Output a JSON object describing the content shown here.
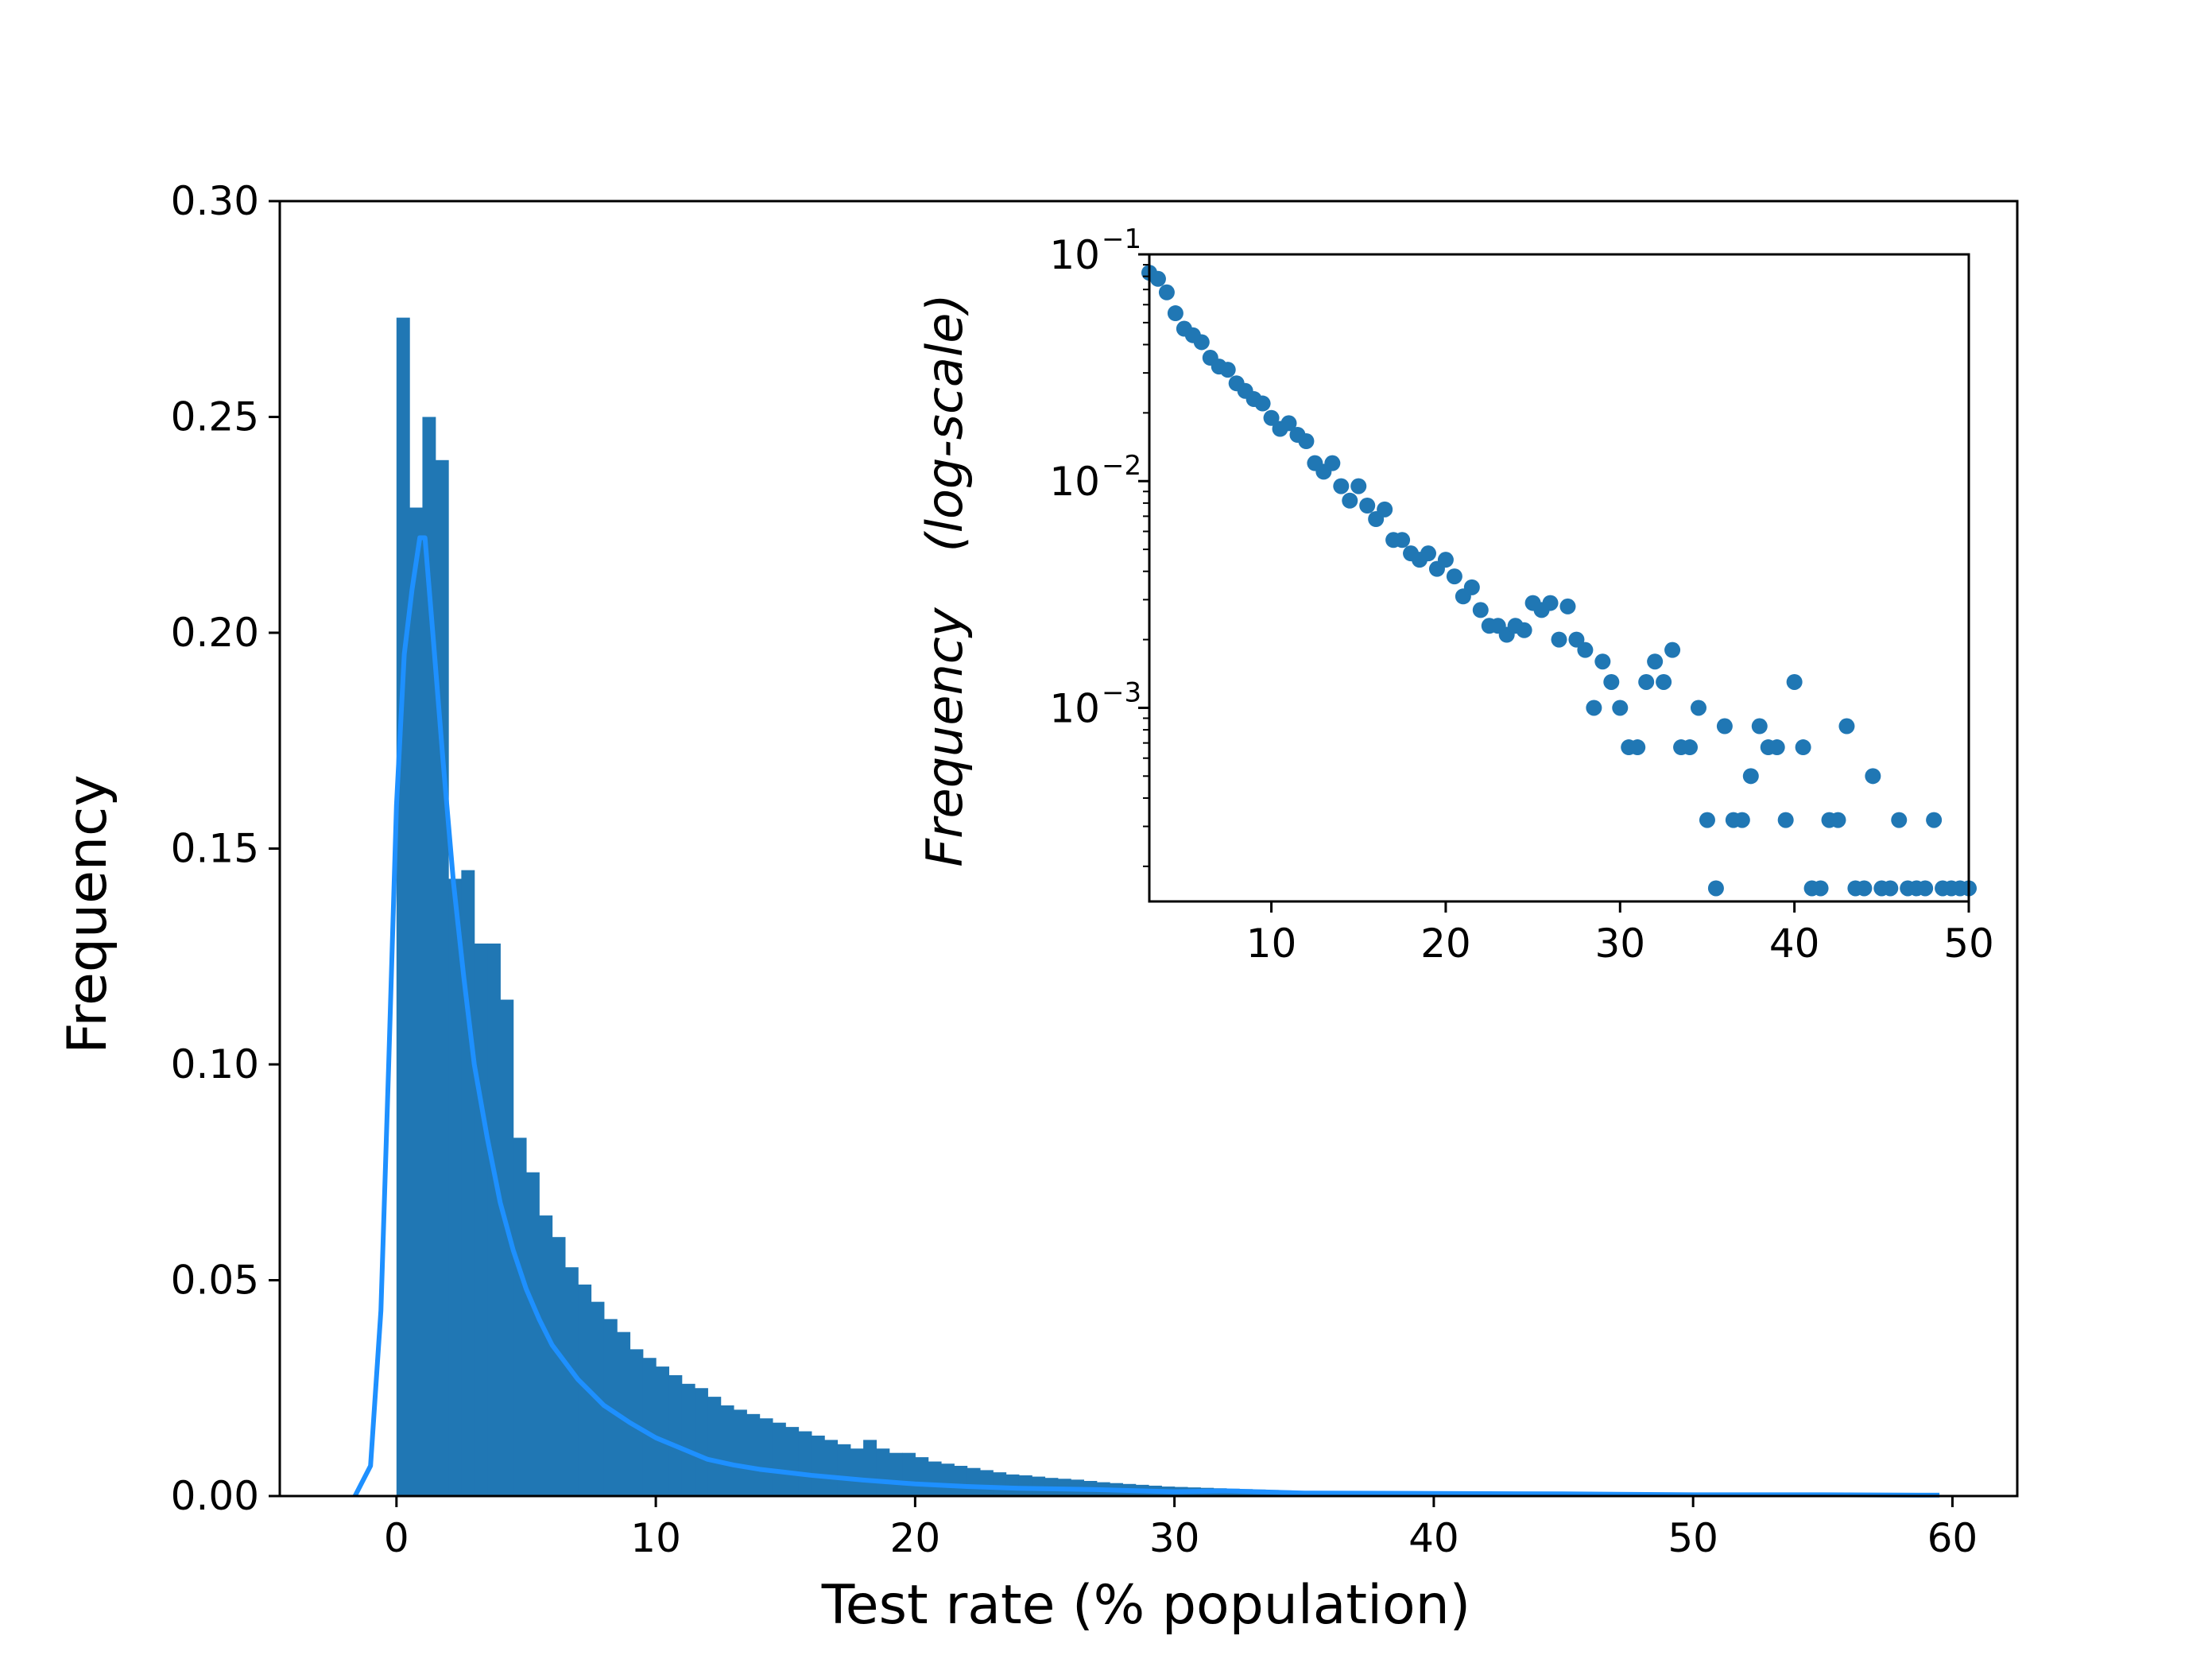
{
  "chart_data": [
    {
      "type": "histogram",
      "id": "main",
      "title": "",
      "xlabel": "Test rate (% population)",
      "ylabel": "Frequency",
      "xlim": [
        -4.5,
        62.5
      ],
      "ylim": [
        0,
        0.3
      ],
      "xticks": [
        0,
        10,
        20,
        30,
        40,
        50,
        60
      ],
      "xtick_labels": [
        "0",
        "10",
        "20",
        "30",
        "40",
        "50",
        "60"
      ],
      "yticks": [
        0,
        0.05,
        0.1,
        0.15,
        0.2,
        0.25,
        0.3
      ],
      "ytick_labels": [
        "0.00",
        "0.05",
        "0.10",
        "0.15",
        "0.20",
        "0.25",
        "0.30"
      ],
      "bar_color": "#2077b4",
      "bin_width": 0.5,
      "bin_start": 0,
      "bar_values": [
        0.273,
        0.229,
        0.25,
        0.24,
        0.143,
        0.145,
        0.128,
        0.128,
        0.115,
        0.083,
        0.075,
        0.065,
        0.06,
        0.053,
        0.049,
        0.045,
        0.041,
        0.038,
        0.034,
        0.032,
        0.03,
        0.028,
        0.026,
        0.025,
        0.023,
        0.021,
        0.02,
        0.019,
        0.018,
        0.017,
        0.016,
        0.015,
        0.014,
        0.013,
        0.012,
        0.011,
        0.013,
        0.011,
        0.01,
        0.01,
        0.009,
        0.008,
        0.0075,
        0.007,
        0.0065,
        0.006,
        0.0055,
        0.005,
        0.0048,
        0.0045,
        0.0042,
        0.004,
        0.0038,
        0.0035,
        0.0032,
        0.003,
        0.0028,
        0.0026,
        0.0024,
        0.0022,
        0.0021,
        0.002,
        0.0019,
        0.0018,
        0.0017,
        0.0016,
        0.0015,
        0.0014,
        0.0013,
        0.0012,
        0.0011,
        0.001,
        0.001,
        0.0009,
        0.0009,
        0.0008,
        0.0008,
        0.0007,
        0.0007,
        0.0006,
        0.0006,
        0.0005,
        0.0005,
        0.0005,
        0.0004,
        0.0004,
        0.0004,
        0.0003,
        0.0003,
        0.0003,
        0.0003,
        0.0002,
        0.0002,
        0.0002,
        0.0002,
        0.0002,
        0.0001,
        0.0001,
        0.0001,
        0.0001
      ],
      "kde_color": "#1e90ff",
      "kde_x": [
        -1.6,
        -1.0,
        -0.6,
        -0.3,
        0.0,
        0.3,
        0.6,
        0.9,
        1.1,
        1.4,
        1.8,
        2.2,
        2.6,
        3.0,
        3.5,
        4.0,
        4.5,
        5.0,
        5.5,
        6.0,
        6.5,
        7.0,
        7.5,
        8.0,
        9.0,
        10.0,
        11.0,
        12.0,
        13.0,
        14.0,
        15.0,
        16.0,
        18.0,
        20.0,
        22.0,
        24.0,
        27.0,
        30.0,
        32.0,
        35.0,
        40.0,
        45.0,
        50.0,
        55.0,
        59.5
      ],
      "kde_y": [
        0.0,
        0.007,
        0.043,
        0.1,
        0.16,
        0.195,
        0.21,
        0.222,
        0.222,
        0.2,
        0.17,
        0.142,
        0.12,
        0.1,
        0.083,
        0.068,
        0.057,
        0.048,
        0.041,
        0.035,
        0.031,
        0.027,
        0.024,
        0.021,
        0.017,
        0.0135,
        0.011,
        0.0085,
        0.0072,
        0.0062,
        0.0055,
        0.0048,
        0.0037,
        0.0028,
        0.0022,
        0.0018,
        0.0015,
        0.001,
        0.0012,
        0.0007,
        0.0006,
        0.0005,
        0.0003,
        0.0003,
        0.0002
      ]
    },
    {
      "type": "scatter",
      "id": "inset",
      "title": "",
      "xlabel": "",
      "ylabel_parts": [
        "Frequency",
        "(log-scale)"
      ],
      "yscale": "log",
      "xlim": [
        3,
        50
      ],
      "ylim": [
        0.00014,
        0.1
      ],
      "xticks": [
        10,
        20,
        30,
        40,
        50
      ],
      "xtick_labels": [
        "10",
        "20",
        "30",
        "40",
        "50"
      ],
      "yticks_major": [
        0.001,
        0.01,
        0.1
      ],
      "ytick_labels": [
        {
          "base": "10",
          "exp": "−3"
        },
        {
          "base": "10",
          "exp": "−2"
        },
        {
          "base": "10",
          "exp": "−1"
        }
      ],
      "point_color": "#2077b4",
      "x": [
        3.0,
        3.5,
        4.0,
        4.5,
        5.0,
        5.5,
        6.0,
        6.5,
        7.0,
        7.5,
        8.0,
        8.5,
        9.0,
        9.5,
        10.0,
        10.5,
        11.0,
        11.5,
        12.0,
        12.5,
        13.0,
        13.5,
        14.0,
        14.5,
        15.0,
        15.5,
        16.0,
        16.5,
        17.0,
        17.5,
        18.0,
        18.5,
        19.0,
        19.5,
        20.0,
        20.5,
        21.0,
        21.5,
        22.0,
        22.5,
        23.0,
        23.5,
        24.0,
        24.5,
        25.0,
        25.5,
        26.0,
        26.5,
        27.0,
        27.5,
        28.0,
        28.5,
        29.0,
        29.5,
        30.0,
        30.5,
        31.0,
        31.5,
        32.0,
        32.5,
        33.0,
        33.5,
        34.0,
        34.5,
        35.0,
        35.5,
        36.0,
        36.5,
        37.0,
        37.5,
        38.0,
        38.5,
        39.0,
        39.5,
        40.0,
        40.5,
        41.0,
        41.5,
        42.0,
        42.5,
        43.0,
        43.5,
        44.0,
        44.5,
        45.0,
        45.5,
        46.0,
        46.5,
        47.0,
        47.5,
        48.0,
        48.5,
        49.0,
        49.5,
        50.0
      ],
      "y": [
        0.083,
        0.078,
        0.068,
        0.055,
        0.047,
        0.044,
        0.041,
        0.035,
        0.032,
        0.031,
        0.027,
        0.025,
        0.023,
        0.022,
        0.019,
        0.017,
        0.018,
        0.016,
        0.015,
        0.012,
        0.011,
        0.012,
        0.0095,
        0.0082,
        0.0095,
        0.0078,
        0.0068,
        0.0075,
        0.0055,
        0.0055,
        0.0048,
        0.0045,
        0.0048,
        0.0041,
        0.0045,
        0.0038,
        0.0031,
        0.0034,
        0.0027,
        0.0023,
        0.0023,
        0.0021,
        0.0023,
        0.0022,
        0.0029,
        0.0027,
        0.0029,
        0.002,
        0.0028,
        0.002,
        0.0018,
        0.001,
        0.0016,
        0.0013,
        0.001,
        0.00067,
        0.00067,
        0.0013,
        0.0016,
        0.0013,
        0.0018,
        0.00067,
        0.00067,
        0.001,
        0.00032,
        0.00016,
        0.00083,
        0.00032,
        0.00032,
        0.0005,
        0.00083,
        0.00067,
        0.00067,
        0.00032,
        0.0013,
        0.00067,
        0.00016,
        0.00016,
        0.00032,
        0.00032,
        0.00083,
        0.00016,
        0.00016,
        0.0005,
        0.00016,
        0.00016,
        0.00032,
        0.00016,
        0.00016,
        0.00016,
        0.00032,
        0.00016,
        0.00016,
        0.00016,
        0.00016
      ]
    }
  ]
}
